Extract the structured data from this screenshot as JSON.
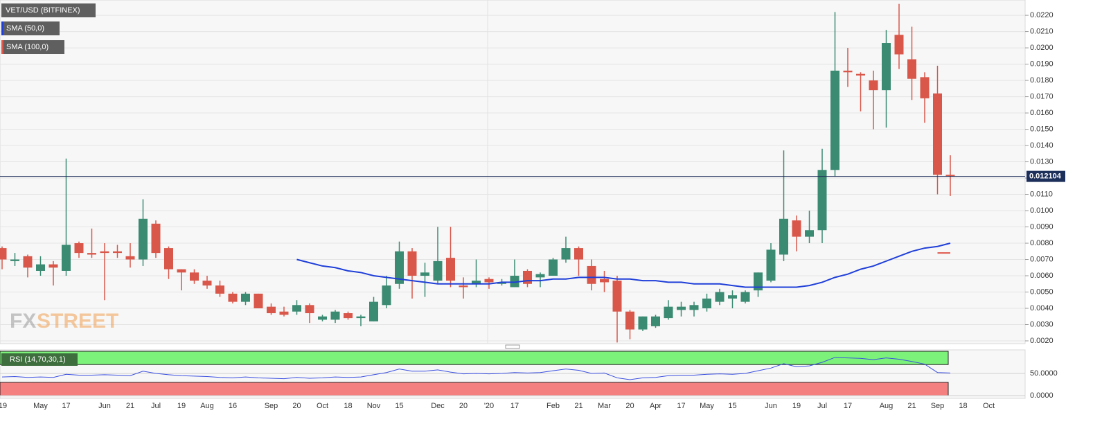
{
  "chart_data": {
    "type": "candlestick",
    "title": "VET/USD (BITFINEX)",
    "watermark": [
      "FX",
      "STREET"
    ],
    "categories": [
      "'19",
      null,
      null,
      "May",
      null,
      "17",
      null,
      null,
      "Jun",
      null,
      "21",
      null,
      "Jul",
      null,
      "19",
      null,
      "Aug",
      null,
      "16",
      null,
      null,
      "Sep",
      null,
      "20",
      null,
      "Oct",
      null,
      "18",
      null,
      "Nov",
      null,
      "15",
      null,
      null,
      "Dec",
      null,
      "20",
      null,
      "'20",
      null,
      "17",
      null,
      null,
      "Feb",
      null,
      "21",
      null,
      "Mar",
      null,
      "20",
      null,
      "Apr",
      null,
      "17",
      null,
      "May",
      null,
      "15",
      null,
      null,
      "Jun",
      null,
      "19",
      null,
      "Jul",
      null,
      "17",
      null,
      null,
      "Aug",
      null,
      "21",
      null,
      "Sep",
      null,
      "18",
      null,
      "Oct"
    ],
    "open": [
      0.0077,
      0.0069,
      0.0072,
      0.0063,
      0.0067,
      0.0063,
      0.008,
      0.0074,
      0.0075,
      0.0075,
      0.0072,
      0.007,
      0.0092,
      0.0077,
      0.0064,
      0.0062,
      0.0057,
      0.0054,
      0.0049,
      0.0044,
      0.0049,
      0.0041,
      0.0038,
      0.0038,
      0.0042,
      0.0033,
      0.0033,
      0.0037,
      0.0034,
      0.0032,
      0.0042,
      0.0055,
      0.0075,
      0.006,
      0.0057,
      0.0071,
      0.0054,
      0.0055,
      0.0058,
      0.0055,
      0.0053,
      0.0063,
      0.0059,
      0.006,
      0.007,
      0.0077,
      0.0066,
      0.0058,
      0.0057,
      0.0038,
      0.0027,
      0.0029,
      0.0034,
      0.0039,
      0.0039,
      0.004,
      0.0044,
      0.0046,
      0.0044,
      0.0051,
      0.0057,
      0.0073,
      0.0094,
      0.0084,
      0.0088,
      0.0125,
      0.0186,
      0.0184,
      0.018,
      0.0174,
      0.0208,
      0.0193,
      0.0182,
      0.0172,
      0.0122,
      null,
      null,
      null
    ],
    "high": [
      0.0078,
      0.0074,
      0.0073,
      0.0072,
      0.0069,
      0.0132,
      0.0081,
      0.0089,
      0.008,
      0.0079,
      0.008,
      0.0107,
      0.0094,
      0.0078,
      0.0064,
      0.0064,
      0.006,
      0.0057,
      0.005,
      0.005,
      0.0049,
      0.0043,
      0.0041,
      0.0045,
      0.0043,
      0.0036,
      0.0039,
      0.0038,
      0.0036,
      0.0047,
      0.006,
      0.0081,
      0.0077,
      0.0068,
      0.009,
      0.009,
      0.0059,
      0.007,
      0.0059,
      0.0058,
      0.007,
      0.0064,
      0.0062,
      0.0071,
      0.0084,
      0.0078,
      0.007,
      0.0063,
      0.006,
      0.0039,
      0.0035,
      0.0036,
      0.0045,
      0.0044,
      0.0044,
      0.0049,
      0.0052,
      0.0051,
      0.0051,
      0.0062,
      0.008,
      0.0137,
      0.0097,
      0.01,
      0.0138,
      0.0222,
      0.02,
      0.0185,
      0.0186,
      0.0211,
      0.0227,
      0.0213,
      0.0185,
      0.0189,
      0.0134,
      null,
      null,
      null
    ],
    "low": [
      0.0064,
      0.0066,
      0.0059,
      0.006,
      0.0054,
      0.006,
      0.0071,
      0.0071,
      0.0045,
      0.0071,
      0.0065,
      0.0066,
      0.0071,
      0.0058,
      0.0051,
      0.0055,
      0.0052,
      0.0047,
      0.0043,
      0.0042,
      0.004,
      0.0036,
      0.0035,
      0.0036,
      0.0031,
      0.0032,
      0.0031,
      0.0033,
      0.0029,
      0.0032,
      0.004,
      0.0052,
      0.0046,
      0.0047,
      0.0055,
      0.0053,
      0.0046,
      0.0053,
      0.0052,
      0.0054,
      0.0053,
      0.0053,
      0.0053,
      0.006,
      0.0068,
      0.006,
      0.0051,
      0.005,
      0.0019,
      0.0021,
      0.0026,
      0.0028,
      0.0033,
      0.0035,
      0.0035,
      0.0038,
      0.0042,
      0.004,
      0.0043,
      0.0047,
      0.0056,
      0.0069,
      0.0075,
      0.008,
      0.008,
      0.0121,
      0.0176,
      0.0161,
      0.015,
      0.0151,
      0.0187,
      0.0168,
      0.0154,
      0.011,
      0.0109,
      null,
      null,
      null
    ],
    "close": [
      0.007,
      0.007,
      0.0065,
      0.0067,
      0.0065,
      0.0079,
      0.0074,
      0.0073,
      0.0074,
      0.0074,
      0.007,
      0.0095,
      0.0074,
      0.0064,
      0.0062,
      0.0057,
      0.0054,
      0.0049,
      0.0044,
      0.0049,
      0.004,
      0.0037,
      0.0036,
      0.0042,
      0.0037,
      0.0035,
      0.0038,
      0.0034,
      0.0035,
      0.0044,
      0.0054,
      0.0075,
      0.006,
      0.0062,
      0.0069,
      0.0057,
      0.0053,
      0.0057,
      0.0056,
      0.0056,
      0.006,
      0.0055,
      0.0061,
      0.007,
      0.0077,
      0.007,
      0.0055,
      0.0056,
      0.0038,
      0.0027,
      0.0035,
      0.0035,
      0.0041,
      0.0041,
      0.0042,
      0.0046,
      0.005,
      0.0048,
      0.005,
      0.0062,
      0.0076,
      0.0095,
      0.0084,
      0.0088,
      0.0125,
      0.0186,
      0.0185,
      0.0183,
      0.0174,
      0.0203,
      0.0196,
      0.0181,
      0.0169,
      0.0122,
      0.0121,
      null,
      null,
      null
    ],
    "up_color": "#3b8a72",
    "down_color": "#d9574a",
    "series": [
      {
        "name": "SMA (50,0)",
        "color": "#1f3fd8",
        "values": [
          null,
          null,
          null,
          null,
          null,
          null,
          null,
          null,
          null,
          null,
          null,
          null,
          null,
          null,
          null,
          null,
          null,
          null,
          null,
          null,
          null,
          null,
          null,
          0.007,
          0.0068,
          0.0066,
          0.0065,
          0.0063,
          0.0062,
          0.006,
          0.0059,
          0.0058,
          0.0057,
          0.0056,
          0.0055,
          0.0055,
          0.0055,
          0.0055,
          0.0055,
          0.0056,
          0.0056,
          0.0057,
          0.0057,
          0.0058,
          0.0058,
          0.0059,
          0.0059,
          0.0059,
          0.0058,
          0.0058,
          0.0057,
          0.0057,
          0.0056,
          0.0056,
          0.0055,
          0.0055,
          0.0055,
          0.0054,
          0.0053,
          0.0053,
          0.0053,
          0.0053,
          0.0053,
          0.0054,
          0.0056,
          0.0059,
          0.0061,
          0.0064,
          0.0066,
          0.0069,
          0.0072,
          0.0075,
          0.0077,
          0.0078,
          0.008,
          null,
          null,
          null
        ]
      },
      {
        "name": "SMA (100,0)",
        "color": "#e0574c",
        "values": [
          null,
          null,
          null,
          null,
          null,
          null,
          null,
          null,
          null,
          null,
          null,
          null,
          null,
          null,
          null,
          null,
          null,
          null,
          null,
          null,
          null,
          null,
          null,
          null,
          null,
          null,
          null,
          null,
          null,
          null,
          null,
          null,
          null,
          null,
          null,
          null,
          null,
          null,
          null,
          null,
          null,
          null,
          null,
          null,
          null,
          null,
          null,
          null,
          null,
          null,
          null,
          null,
          null,
          null,
          null,
          null,
          null,
          null,
          null,
          null,
          null,
          null,
          null,
          null,
          null,
          null,
          null,
          null,
          null,
          null,
          null,
          null,
          null,
          0.0074,
          0.0074,
          null,
          null,
          null
        ]
      }
    ],
    "last_price": 0.012104,
    "ylim": [
      0.00183,
      0.02294
    ],
    "yticks": [
      {
        "value": 0.002,
        "label": "0.0020"
      },
      {
        "value": 0.003,
        "label": "0.0030"
      },
      {
        "value": 0.004,
        "label": "0.0040"
      },
      {
        "value": 0.005,
        "label": "0.0050"
      },
      {
        "value": 0.006,
        "label": "0.0060"
      },
      {
        "value": 0.007,
        "label": "0.0070"
      },
      {
        "value": 0.008,
        "label": "0.0080"
      },
      {
        "value": 0.009,
        "label": "0.0090"
      },
      {
        "value": 0.01,
        "label": "0.0100"
      },
      {
        "value": 0.011,
        "label": "0.0110"
      },
      {
        "value": 0.012,
        "label": "0.0120"
      },
      {
        "value": 0.013,
        "label": "0.0130"
      },
      {
        "value": 0.014,
        "label": "0.0140"
      },
      {
        "value": 0.015,
        "label": "0.0150"
      },
      {
        "value": 0.016,
        "label": "0.0160"
      },
      {
        "value": 0.017,
        "label": "0.0170"
      },
      {
        "value": 0.018,
        "label": "0.0180"
      },
      {
        "value": 0.019,
        "label": "0.0190"
      },
      {
        "value": 0.02,
        "label": "0.0200"
      },
      {
        "value": 0.021,
        "label": "0.0210"
      },
      {
        "value": 0.022,
        "label": "0.0220"
      }
    ],
    "grid": true,
    "indicator": {
      "name": "RSI (14,70,30,1)",
      "color": "#3a4fe0",
      "overbought": 70,
      "oversold": 30,
      "ylim": [
        0,
        100
      ],
      "yticks": [
        {
          "value": 0,
          "label": "0.0000"
        },
        {
          "value": 50,
          "label": "50.0000"
        }
      ],
      "values": [
        42,
        43,
        41,
        42,
        41,
        48,
        46,
        46,
        47,
        46,
        45,
        55,
        50,
        47,
        45,
        44,
        43,
        41,
        40,
        42,
        40,
        39,
        38,
        41,
        39,
        40,
        42,
        41,
        42,
        47,
        52,
        60,
        55,
        55,
        58,
        53,
        49,
        50,
        49,
        50,
        52,
        51,
        52,
        56,
        60,
        57,
        50,
        51,
        40,
        36,
        40,
        41,
        45,
        46,
        46,
        48,
        49,
        48,
        50,
        56,
        62,
        72,
        65,
        67,
        75,
        86,
        85,
        84,
        81,
        85,
        82,
        77,
        71,
        52,
        51,
        null,
        null,
        null
      ]
    }
  }
}
